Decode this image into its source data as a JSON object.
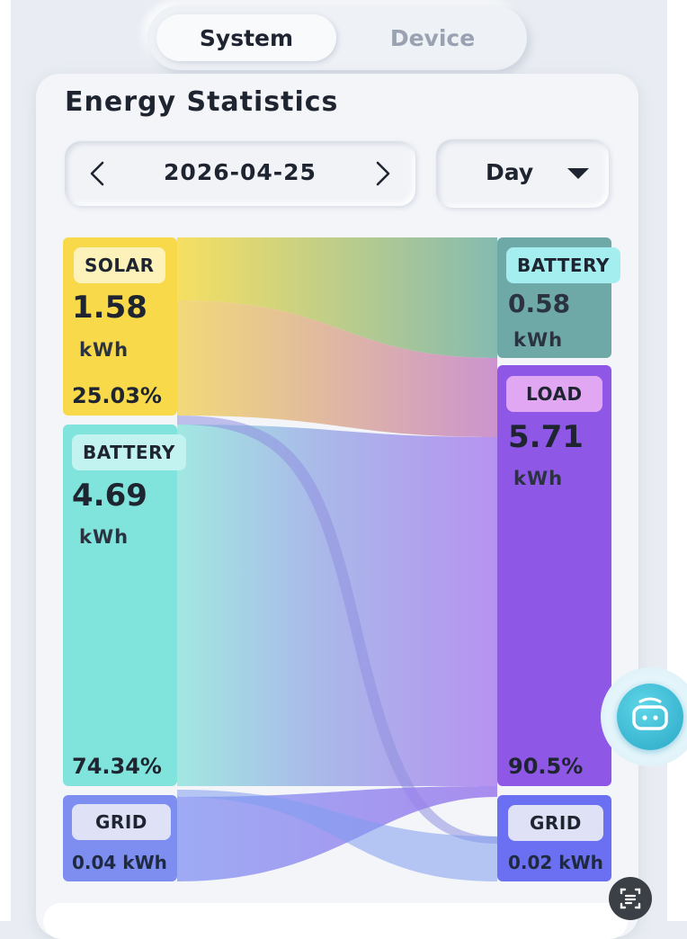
{
  "tabs": [
    {
      "label": "System",
      "active": true
    },
    {
      "label": "Device",
      "active": false
    }
  ],
  "page_title": "Energy Statistics",
  "date_picker": {
    "date": "2026-04-25",
    "prev_icon": "chevron-left-icon",
    "next_icon": "chevron-right-icon"
  },
  "period_select": {
    "selected": "Day",
    "icon": "caret-down-icon"
  },
  "sources": {
    "solar": {
      "label": "SOLAR",
      "value": "1.58",
      "unit": "kWh",
      "percent": "25.03%",
      "color": "#f6d84a"
    },
    "battery": {
      "label": "BATTERY",
      "value": "4.69",
      "unit": "kWh",
      "percent": "74.34%",
      "color": "#7fe3dc"
    },
    "grid": {
      "label": "GRID",
      "value_text": "0.04 kWh",
      "color": "#7f8df0"
    }
  },
  "destinations": {
    "battery": {
      "label": "BATTERY",
      "value": "0.58",
      "unit": "kWh",
      "color": "#6fa9a8"
    },
    "load": {
      "label": "LOAD",
      "value": "5.71",
      "unit": "kWh",
      "percent": "90.5%",
      "color": "#8f58e6"
    },
    "grid": {
      "label": "GRID",
      "value_text": "0.02 kWh",
      "color": "#6f6ff0"
    }
  },
  "floating_button": {
    "icon": "chat-bot-icon"
  },
  "scan_button": {
    "icon": "scan-text-icon"
  }
}
